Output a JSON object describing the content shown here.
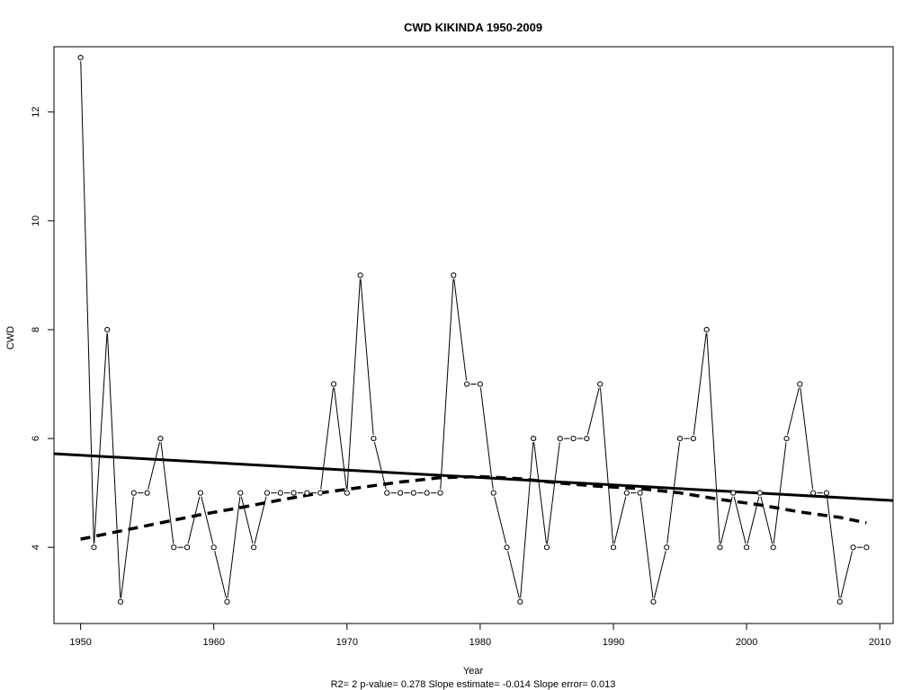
{
  "chart_data": {
    "type": "line",
    "title": "CWD   KIKINDA 1950-2009",
    "xlabel": "Year",
    "ylabel": "CWD",
    "subtitle": "R2= 2  p-value= 0.278  Slope estimate= -0.014  Slope error= 0.013",
    "xlim": [
      1948,
      2011
    ],
    "ylim": [
      2.6,
      13.2
    ],
    "x_ticks": [
      1950,
      1960,
      1970,
      1980,
      1990,
      2000,
      2010
    ],
    "y_ticks": [
      4,
      6,
      8,
      10,
      12
    ],
    "grid": false,
    "series": [
      {
        "style": "line-with-open-circles",
        "x": [
          1950,
          1951,
          1952,
          1953,
          1954,
          1955,
          1956,
          1957,
          1958,
          1959,
          1960,
          1961,
          1962,
          1963,
          1964,
          1965,
          1966,
          1967,
          1968,
          1969,
          1970,
          1971,
          1972,
          1973,
          1974,
          1975,
          1976,
          1977,
          1978,
          1979,
          1980,
          1981,
          1982,
          1983,
          1984,
          1985,
          1986,
          1987,
          1988,
          1989,
          1990,
          1991,
          1992,
          1993,
          1994,
          1995,
          1996,
          1997,
          1998,
          1999,
          2000,
          2001,
          2002,
          2003,
          2004,
          2005,
          2006,
          2007,
          2008,
          2009
        ],
        "values": [
          13,
          4,
          8,
          3,
          5,
          5,
          6,
          4,
          4,
          5,
          4,
          3,
          5,
          4,
          5,
          5,
          5,
          5,
          5,
          7,
          5,
          9,
          6,
          5,
          5,
          5,
          5,
          5,
          9,
          7,
          7,
          5,
          4,
          3,
          6,
          4,
          6,
          6,
          6,
          7,
          4,
          5,
          5,
          3,
          4,
          6,
          6,
          8,
          4,
          5,
          4,
          5,
          4,
          6,
          7,
          5,
          5,
          3,
          4,
          4
        ]
      },
      {
        "style": "solid-thick",
        "x": [
          1948,
          2011
        ],
        "values": [
          5.72,
          4.86
        ]
      },
      {
        "style": "dashed-thick",
        "x": [
          1950,
          1953,
          1956,
          1959,
          1962,
          1965,
          1968,
          1971,
          1974,
          1977,
          1980,
          1983,
          1986,
          1989,
          1992,
          1995,
          1998,
          2001,
          2004,
          2007,
          2009
        ],
        "values": [
          4.15,
          4.3,
          4.45,
          4.6,
          4.73,
          4.87,
          5.0,
          5.1,
          5.2,
          5.28,
          5.3,
          5.26,
          5.18,
          5.12,
          5.08,
          5.0,
          4.88,
          4.78,
          4.65,
          4.55,
          4.45
        ]
      }
    ]
  }
}
